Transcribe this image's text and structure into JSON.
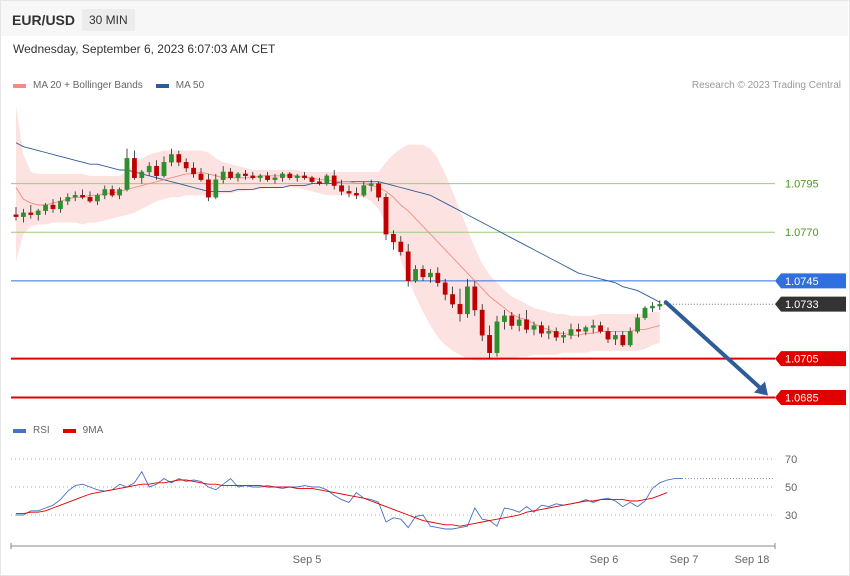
{
  "header": {
    "symbol": "EUR/USD",
    "timeframe": "30 MIN"
  },
  "datetime": "Wednesday, September 6, 2023 6:07:03 AM CET",
  "legend": {
    "bb": {
      "label": "MA 20 + Bollinger Bands",
      "color": "#f28b82"
    },
    "ma50": {
      "label": "MA 50",
      "color": "#2e5c99"
    }
  },
  "credit": "Research © 2023 Trading Central",
  "rsi_legend": {
    "rsi": {
      "label": "RSI",
      "color": "#4472c4"
    },
    "ma9": {
      "label": "9MA",
      "color": "#e00000"
    }
  },
  "x_labels": [
    "Sep 5",
    "Sep 6",
    "Sep 7",
    "Sep 18"
  ],
  "chart_data": {
    "type": "candlestick",
    "ylim": [
      1.0676,
      1.0838
    ],
    "levels": [
      {
        "value": 1.0795,
        "label": "1.0795",
        "kind": "resistance",
        "color": "#9ccc7a",
        "text_color": "#4a9a1a"
      },
      {
        "value": 1.077,
        "label": "1.0770",
        "kind": "resistance",
        "color": "#9ccc7a",
        "text_color": "#4a9a1a"
      },
      {
        "value": 1.0745,
        "label": "1.0745",
        "kind": "pivot",
        "color": "#2f6fe0",
        "text_color": "#ffffff"
      },
      {
        "value": 1.0733,
        "label": "1.0733",
        "kind": "last price",
        "color": "#333333",
        "text_color": "#ffffff"
      },
      {
        "value": 1.0705,
        "label": "1.0705",
        "kind": "support",
        "color": "#e00000",
        "text_color": "#ffffff"
      },
      {
        "value": 1.0685,
        "label": "1.0685",
        "kind": "support",
        "color": "#e00000",
        "text_color": "#ffffff"
      }
    ],
    "forecast_arrow": {
      "from": 1.0734,
      "to": 1.0685,
      "color": "#2e5c99"
    },
    "candles": [
      [
        1.0779,
        1.0783,
        1.0776,
        1.0778
      ],
      [
        1.0778,
        1.0782,
        1.0775,
        1.078
      ],
      [
        1.078,
        1.0784,
        1.0777,
        1.0779
      ],
      [
        1.0779,
        1.0782,
        1.0776,
        1.0781
      ],
      [
        1.0781,
        1.0785,
        1.0779,
        1.0784
      ],
      [
        1.0784,
        1.0787,
        1.078,
        1.0782
      ],
      [
        1.0782,
        1.0788,
        1.078,
        1.0786
      ],
      [
        1.0786,
        1.079,
        1.0784,
        1.0788
      ],
      [
        1.0788,
        1.0791,
        1.0786,
        1.0789
      ],
      [
        1.0789,
        1.0792,
        1.0787,
        1.0788
      ],
      [
        1.0788,
        1.0791,
        1.0785,
        1.0786
      ],
      [
        1.0786,
        1.079,
        1.0784,
        1.0789
      ],
      [
        1.0789,
        1.0794,
        1.0787,
        1.0792
      ],
      [
        1.0792,
        1.0794,
        1.0788,
        1.0789
      ],
      [
        1.0789,
        1.0793,
        1.0787,
        1.0792
      ],
      [
        1.0792,
        1.0813,
        1.0791,
        1.0808
      ],
      [
        1.0808,
        1.0812,
        1.0797,
        1.0798
      ],
      [
        1.0798,
        1.0802,
        1.0795,
        1.0801
      ],
      [
        1.0801,
        1.0806,
        1.0799,
        1.0804
      ],
      [
        1.0804,
        1.0807,
        1.0797,
        1.0799
      ],
      [
        1.0799,
        1.0809,
        1.0798,
        1.0806
      ],
      [
        1.0806,
        1.0813,
        1.0804,
        1.081
      ],
      [
        1.081,
        1.0812,
        1.0804,
        1.0806
      ],
      [
        1.0806,
        1.0808,
        1.0801,
        1.0803
      ],
      [
        1.0803,
        1.0806,
        1.0798,
        1.08
      ],
      [
        1.08,
        1.0803,
        1.0796,
        1.0797
      ],
      [
        1.0797,
        1.08,
        1.0786,
        1.0788
      ],
      [
        1.0788,
        1.08,
        1.0787,
        1.0797
      ],
      [
        1.0797,
        1.0804,
        1.0795,
        1.0801
      ],
      [
        1.0801,
        1.0803,
        1.0797,
        1.0798
      ],
      [
        1.0798,
        1.0801,
        1.0796,
        1.08
      ],
      [
        1.08,
        1.0802,
        1.0797,
        1.0799
      ],
      [
        1.0799,
        1.0801,
        1.0797,
        1.0798
      ],
      [
        1.0798,
        1.08,
        1.0796,
        1.0799
      ],
      [
        1.0799,
        1.0801,
        1.0796,
        1.0797
      ],
      [
        1.0797,
        1.08,
        1.0795,
        1.0798
      ],
      [
        1.0798,
        1.0801,
        1.0796,
        1.08
      ],
      [
        1.08,
        1.0801,
        1.0797,
        1.0798
      ],
      [
        1.0798,
        1.08,
        1.0796,
        1.0799
      ],
      [
        1.0799,
        1.0801,
        1.0797,
        1.0798
      ],
      [
        1.0798,
        1.0799,
        1.0795,
        1.0796
      ],
      [
        1.0796,
        1.0798,
        1.0794,
        1.0795
      ],
      [
        1.0795,
        1.08,
        1.0794,
        1.0799
      ],
      [
        1.0799,
        1.0802,
        1.0792,
        1.0794
      ],
      [
        1.0794,
        1.0797,
        1.0789,
        1.0791
      ],
      [
        1.0791,
        1.0794,
        1.0788,
        1.079
      ],
      [
        1.079,
        1.0793,
        1.0787,
        1.0789
      ],
      [
        1.0789,
        1.0796,
        1.0788,
        1.0794
      ],
      [
        1.0794,
        1.0797,
        1.0791,
        1.0795
      ],
      [
        1.0795,
        1.0796,
        1.0786,
        1.0788
      ],
      [
        1.0788,
        1.079,
        1.0766,
        1.0769
      ],
      [
        1.0769,
        1.0771,
        1.0761,
        1.0765
      ],
      [
        1.0765,
        1.0768,
        1.0758,
        1.076
      ],
      [
        1.076,
        1.0764,
        1.0742,
        1.0745
      ],
      [
        1.0745,
        1.0753,
        1.0744,
        1.0751
      ],
      [
        1.0751,
        1.0753,
        1.0745,
        1.0747
      ],
      [
        1.0747,
        1.0751,
        1.0744,
        1.0749
      ],
      [
        1.0749,
        1.0752,
        1.0742,
        1.0744
      ],
      [
        1.0744,
        1.0746,
        1.0735,
        1.0738
      ],
      [
        1.0738,
        1.0742,
        1.0731,
        1.0733
      ],
      [
        1.0733,
        1.0741,
        1.0724,
        1.0728
      ],
      [
        1.0728,
        1.0746,
        1.0726,
        1.0742
      ],
      [
        1.0742,
        1.0745,
        1.0727,
        1.073
      ],
      [
        1.073,
        1.0733,
        1.0714,
        1.0717
      ],
      [
        1.0717,
        1.0722,
        1.0705,
        1.0708
      ],
      [
        1.0708,
        1.0727,
        1.0706,
        1.0724
      ],
      [
        1.0724,
        1.073,
        1.072,
        1.0727
      ],
      [
        1.0727,
        1.0729,
        1.072,
        1.0722
      ],
      [
        1.0722,
        1.0728,
        1.0719,
        1.0725
      ],
      [
        1.0725,
        1.073,
        1.0718,
        1.072
      ],
      [
        1.072,
        1.0724,
        1.0717,
        1.0722
      ],
      [
        1.0722,
        1.0724,
        1.0716,
        1.0718
      ],
      [
        1.0718,
        1.0722,
        1.0715,
        1.0719
      ],
      [
        1.0719,
        1.0721,
        1.0714,
        1.0716
      ],
      [
        1.0716,
        1.0719,
        1.0713,
        1.0717
      ],
      [
        1.0717,
        1.0723,
        1.0715,
        1.072
      ],
      [
        1.072,
        1.0723,
        1.0716,
        1.0719
      ],
      [
        1.0719,
        1.0722,
        1.0717,
        1.0721
      ],
      [
        1.0721,
        1.0725,
        1.0718,
        1.0722
      ],
      [
        1.0722,
        1.0724,
        1.0718,
        1.0719
      ],
      [
        1.0719,
        1.0721,
        1.0713,
        1.0715
      ],
      [
        1.0715,
        1.0719,
        1.0712,
        1.0717
      ],
      [
        1.0717,
        1.0719,
        1.0711,
        1.0712
      ],
      [
        1.0712,
        1.0721,
        1.0711,
        1.0719
      ],
      [
        1.0719,
        1.0728,
        1.0718,
        1.0726
      ],
      [
        1.0726,
        1.0732,
        1.0725,
        1.0731
      ],
      [
        1.0731,
        1.0734,
        1.0729,
        1.0732
      ],
      [
        1.0732,
        1.0735,
        1.073,
        1.0733
      ]
    ],
    "ma20": [
      1.0793,
      1.0787,
      1.0785,
      1.0784,
      1.0784,
      1.0785,
      1.0786,
      1.0787,
      1.0788,
      1.0788,
      1.0789,
      1.0789,
      1.079,
      1.079,
      1.0791,
      1.0792,
      1.0793,
      1.0794,
      1.0795,
      1.0796,
      1.0797,
      1.0798,
      1.0799,
      1.08,
      1.08,
      1.0801,
      1.08,
      1.0799,
      1.0798,
      1.0798,
      1.0798,
      1.0798,
      1.0798,
      1.0799,
      1.0799,
      1.0799,
      1.0799,
      1.0799,
      1.0799,
      1.0798,
      1.0798,
      1.0797,
      1.0797,
      1.0796,
      1.0796,
      1.0796,
      1.0795,
      1.0795,
      1.0794,
      1.0793,
      1.0791,
      1.0788,
      1.0784,
      1.0781,
      1.0777,
      1.0773,
      1.0769,
      1.0765,
      1.0761,
      1.0757,
      1.0753,
      1.0749,
      1.0745,
      1.0741,
      1.0737,
      1.0734,
      1.0731,
      1.0728,
      1.0726,
      1.0725,
      1.0723,
      1.0721,
      1.072,
      1.0718,
      1.0718,
      1.0717,
      1.0717,
      1.0718,
      1.0718,
      1.0719,
      1.0719,
      1.0719,
      1.0719,
      1.0719,
      1.072,
      1.072,
      1.0721,
      1.0722
    ],
    "bb_upper": [
      1.0835,
      1.081,
      1.0801,
      1.08,
      1.08,
      1.08,
      1.08,
      1.08,
      1.08,
      1.08,
      1.0799,
      1.0799,
      1.0799,
      1.0799,
      1.0799,
      1.0801,
      1.0806,
      1.0808,
      1.081,
      1.0811,
      1.0812,
      1.0812,
      1.0812,
      1.0812,
      1.0812,
      1.0812,
      1.0811,
      1.0808,
      1.0806,
      1.0805,
      1.0804,
      1.0803,
      1.0802,
      1.0802,
      1.0802,
      1.0802,
      1.0802,
      1.0802,
      1.0802,
      1.0801,
      1.0801,
      1.0801,
      1.0801,
      1.0801,
      1.0801,
      1.0801,
      1.0801,
      1.0801,
      1.0801,
      1.0801,
      1.0806,
      1.081,
      1.0813,
      1.0815,
      1.0815,
      1.0815,
      1.0813,
      1.0808,
      1.08,
      1.0791,
      1.0781,
      1.0772,
      1.0762,
      1.0754,
      1.0748,
      1.0744,
      1.074,
      1.0737,
      1.0735,
      1.0733,
      1.0731,
      1.073,
      1.0729,
      1.0728,
      1.0728,
      1.0727,
      1.0727,
      1.0727,
      1.0727,
      1.0728,
      1.0728,
      1.0728,
      1.0728,
      1.0728,
      1.0728,
      1.0728,
      1.0729,
      1.0729
    ],
    "bb_lower": [
      1.0755,
      1.0769,
      1.0773,
      1.0774,
      1.0774,
      1.0775,
      1.0775,
      1.0775,
      1.0775,
      1.0774,
      1.0775,
      1.0775,
      1.0776,
      1.0777,
      1.0778,
      1.0779,
      1.078,
      1.0782,
      1.0784,
      1.0786,
      1.0787,
      1.0788,
      1.0788,
      1.0789,
      1.0789,
      1.0789,
      1.0789,
      1.0789,
      1.079,
      1.079,
      1.0791,
      1.0791,
      1.0792,
      1.0792,
      1.0793,
      1.0793,
      1.0793,
      1.0793,
      1.0793,
      1.0792,
      1.0791,
      1.079,
      1.0789,
      1.0789,
      1.0789,
      1.0789,
      1.0788,
      1.0788,
      1.0786,
      1.0782,
      1.0774,
      1.0765,
      1.0756,
      1.0746,
      1.0737,
      1.0729,
      1.0722,
      1.0716,
      1.0712,
      1.0709,
      1.0707,
      1.0705,
      1.0704,
      1.0704,
      1.0704,
      1.0704,
      1.0705,
      1.0705,
      1.0706,
      1.0706,
      1.0707,
      1.0707,
      1.0707,
      1.0707,
      1.0708,
      1.0708,
      1.0708,
      1.0708,
      1.0709,
      1.0709,
      1.0709,
      1.0709,
      1.0709,
      1.0709,
      1.0709,
      1.071,
      1.0712,
      1.0713
    ],
    "ma50": [
      1.0816,
      1.0814,
      1.0813,
      1.0812,
      1.0811,
      1.081,
      1.0809,
      1.0808,
      1.0807,
      1.0806,
      1.0805,
      1.0805,
      1.0804,
      1.0803,
      1.0802,
      1.0802,
      1.0801,
      1.08,
      1.0799,
      1.0798,
      1.0797,
      1.0796,
      1.0795,
      1.0794,
      1.0793,
      1.0792,
      1.0791,
      1.0791,
      1.0791,
      1.0791,
      1.0792,
      1.0792,
      1.0792,
      1.0793,
      1.0793,
      1.0793,
      1.0793,
      1.0794,
      1.0794,
      1.0794,
      1.0795,
      1.0795,
      1.0795,
      1.0795,
      1.0796,
      1.0796,
      1.0796,
      1.0796,
      1.0796,
      1.0796,
      1.0795,
      1.0794,
      1.0793,
      1.0792,
      1.0791,
      1.079,
      1.0789,
      1.0787,
      1.0785,
      1.0783,
      1.0781,
      1.0779,
      1.0777,
      1.0775,
      1.0773,
      1.0771,
      1.0769,
      1.0767,
      1.0765,
      1.0763,
      1.0761,
      1.0759,
      1.0757,
      1.0755,
      1.0753,
      1.0751,
      1.0749,
      1.0748,
      1.0747,
      1.0746,
      1.0745,
      1.0744,
      1.0742,
      1.0741,
      1.074,
      1.0738,
      1.0736,
      1.0734
    ],
    "rsi_panel": {
      "y_ticks": [
        70,
        50,
        30
      ],
      "ylim": [
        15,
        80
      ],
      "rsi": [
        30,
        30,
        33,
        33,
        35,
        37,
        41,
        47,
        51,
        52,
        50,
        48,
        47,
        48,
        52,
        50,
        53,
        61,
        50,
        52,
        56,
        53,
        56,
        54,
        55,
        54,
        50,
        48,
        52,
        56,
        50,
        51,
        50,
        50,
        51,
        50,
        49,
        50,
        50,
        51,
        50,
        50,
        48,
        44,
        41,
        39,
        46,
        42,
        41,
        39,
        25,
        28,
        27,
        21,
        29,
        30,
        22,
        21,
        20,
        20,
        21,
        22,
        35,
        27,
        26,
        22,
        35,
        34,
        32,
        36,
        32,
        37,
        36,
        38,
        37,
        38,
        39,
        41,
        39,
        41,
        42,
        40,
        36,
        39,
        36,
        40,
        49,
        53,
        55,
        56,
        56
      ],
      "ma9": [
        31,
        31,
        32,
        32,
        33,
        35,
        37,
        39,
        41,
        43,
        45,
        46,
        47,
        48,
        49,
        50,
        51,
        52,
        52,
        53,
        53,
        54,
        55,
        55,
        54,
        53,
        52,
        52,
        51,
        51,
        51,
        51,
        51,
        51,
        50,
        50,
        50,
        50,
        49,
        49,
        49,
        48,
        47,
        46,
        45,
        44,
        43,
        42,
        40,
        38,
        36,
        34,
        32,
        30,
        28,
        26,
        25,
        24,
        23,
        23,
        22,
        23,
        24,
        25,
        26,
        27,
        28,
        29,
        30,
        32,
        33,
        34,
        35,
        36,
        37,
        38,
        39,
        40,
        40,
        41,
        41,
        41,
        41,
        40,
        40,
        41,
        42,
        44,
        46
      ],
      "rsi_projection": 56
    }
  }
}
